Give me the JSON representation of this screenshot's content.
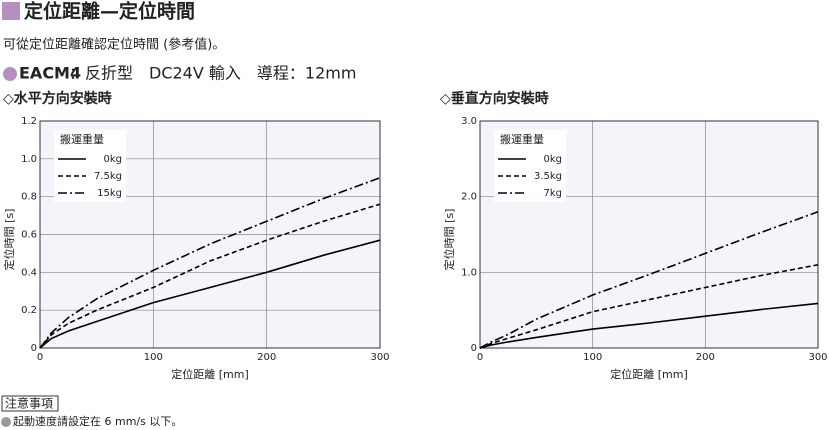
{
  "header": {
    "title": "定位距離—定位時間",
    "subtitle": "可從定位距離確認定位時間 (參考值)。",
    "model": "EACM4",
    "spec": "：反折型　DC24V 輸入　導程：12mm"
  },
  "chart_data": [
    {
      "type": "line",
      "title": "◇水平方向安裝時",
      "x_label": "定位距離 [mm]",
      "y_label": "定位時間 [s]",
      "legend_title": "搬運重量",
      "x": [
        0,
        10,
        25,
        50,
        100,
        150,
        200,
        250,
        300
      ],
      "series": [
        {
          "name": "0kg",
          "color": "#000000",
          "dash": "solid",
          "values": [
            0,
            0.05,
            0.09,
            0.14,
            0.24,
            0.32,
            0.4,
            0.49,
            0.57
          ]
        },
        {
          "name": "7.5kg",
          "color": "#000000",
          "dash": "dashed",
          "values": [
            0,
            0.07,
            0.13,
            0.2,
            0.32,
            0.46,
            0.57,
            0.67,
            0.76
          ]
        },
        {
          "name": "15kg",
          "color": "#000000",
          "dash": "dashdot",
          "values": [
            0,
            0.08,
            0.16,
            0.26,
            0.41,
            0.55,
            0.67,
            0.79,
            0.9
          ]
        }
      ],
      "xlim": [
        0,
        300
      ],
      "xticks": [
        0,
        100,
        200,
        300
      ],
      "ylim": [
        0,
        1.2
      ],
      "yticks": [
        0,
        0.2,
        0.4,
        0.6,
        0.8,
        {
          "value": 1,
          "label": "1.0"
        },
        1.2
      ],
      "grid": true
    },
    {
      "type": "line",
      "title": "◇垂直方向安裝時",
      "x_label": "定位距離 [mm]",
      "y_label": "定位時間 [s]",
      "legend_title": "搬運重量",
      "x": [
        0,
        10,
        25,
        50,
        100,
        150,
        200,
        250,
        300
      ],
      "series": [
        {
          "name": "0kg",
          "color": "#000000",
          "dash": "solid",
          "values": [
            0,
            0.04,
            0.08,
            0.14,
            0.25,
            0.33,
            0.42,
            0.51,
            0.59
          ]
        },
        {
          "name": "3.5kg",
          "color": "#000000",
          "dash": "dashed",
          "values": [
            0,
            0.06,
            0.13,
            0.24,
            0.48,
            0.64,
            0.8,
            0.96,
            1.1
          ]
        },
        {
          "name": "7kg",
          "color": "#000000",
          "dash": "dashdot",
          "values": [
            0,
            0.08,
            0.18,
            0.38,
            0.7,
            0.97,
            1.25,
            1.53,
            1.8
          ]
        }
      ],
      "xlim": [
        0,
        300
      ],
      "xticks": [
        0,
        100,
        200,
        300
      ],
      "ylim": [
        0,
        3
      ],
      "yticks": [
        0,
        {
          "value": 1,
          "label": "1.0"
        },
        {
          "value": 2,
          "label": "2.0"
        },
        {
          "value": 3,
          "label": "3.0"
        }
      ],
      "grid": true
    }
  ],
  "note": {
    "title": "注意事項",
    "text": "起動速度請設定在 6 mm/s 以下。"
  }
}
